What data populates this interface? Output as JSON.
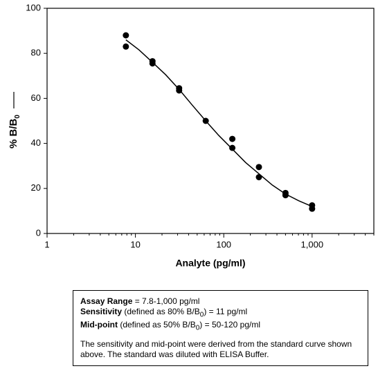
{
  "chart_data": {
    "type": "scatter",
    "xlabel": "Analyte (pg/ml)",
    "ylabel": {
      "text": "% B/B",
      "sub": "0"
    },
    "xscale": "log",
    "xlim": [
      1,
      5000
    ],
    "xticks": [
      1,
      10,
      100,
      {
        "value": 1000,
        "label": "1,000"
      }
    ],
    "xminorticks": [
      2,
      3,
      4,
      5,
      6,
      7,
      8,
      9,
      20,
      30,
      40,
      50,
      60,
      70,
      80,
      90,
      200,
      300,
      400,
      500,
      600,
      700,
      800,
      900,
      2000,
      3000,
      4000,
      5000
    ],
    "ylim": [
      0,
      100
    ],
    "yticks": [
      0,
      20,
      40,
      60,
      80,
      100
    ],
    "series": [
      {
        "style": "points",
        "color": "#000000",
        "x": [
          7.8,
          7.8,
          15.6,
          15.6,
          31.25,
          31.25,
          62.5,
          125,
          125,
          250,
          250,
          500,
          500,
          1000,
          1000
        ],
        "values": [
          88,
          83,
          76.5,
          75.5,
          64.5,
          63.5,
          50,
          42,
          38,
          29.5,
          25,
          18,
          17,
          12.5,
          11
        ]
      },
      {
        "style": "line",
        "color": "#000000",
        "x": [
          7.8,
          11,
          15.6,
          22,
          31.25,
          44,
          62.5,
          88,
          125,
          177,
          250,
          354,
          500,
          707,
          1000
        ],
        "values": [
          86,
          81.5,
          76,
          70.5,
          64,
          57,
          50,
          43.5,
          37.5,
          31.5,
          26.5,
          21.5,
          17.5,
          14.5,
          12
        ]
      }
    ]
  },
  "info_box": {
    "line1": {
      "bold": "Assay Range",
      "rest": " = 7.8-1,000 pg/ml"
    },
    "line2": {
      "bold": "Sensitivity",
      "before": " (defined as 80% B/B",
      "sub": "0",
      "after": ") = 11 pg/ml"
    },
    "line3": {
      "bold": "Mid-point",
      "before": " (defined as 50% B/B",
      "sub": "0",
      "after": ") = 50-120 pg/ml"
    },
    "paragraph": "The sensitivity and mid-point were derived from the standard curve shown above. The standard was diluted with ELISA Buffer."
  }
}
